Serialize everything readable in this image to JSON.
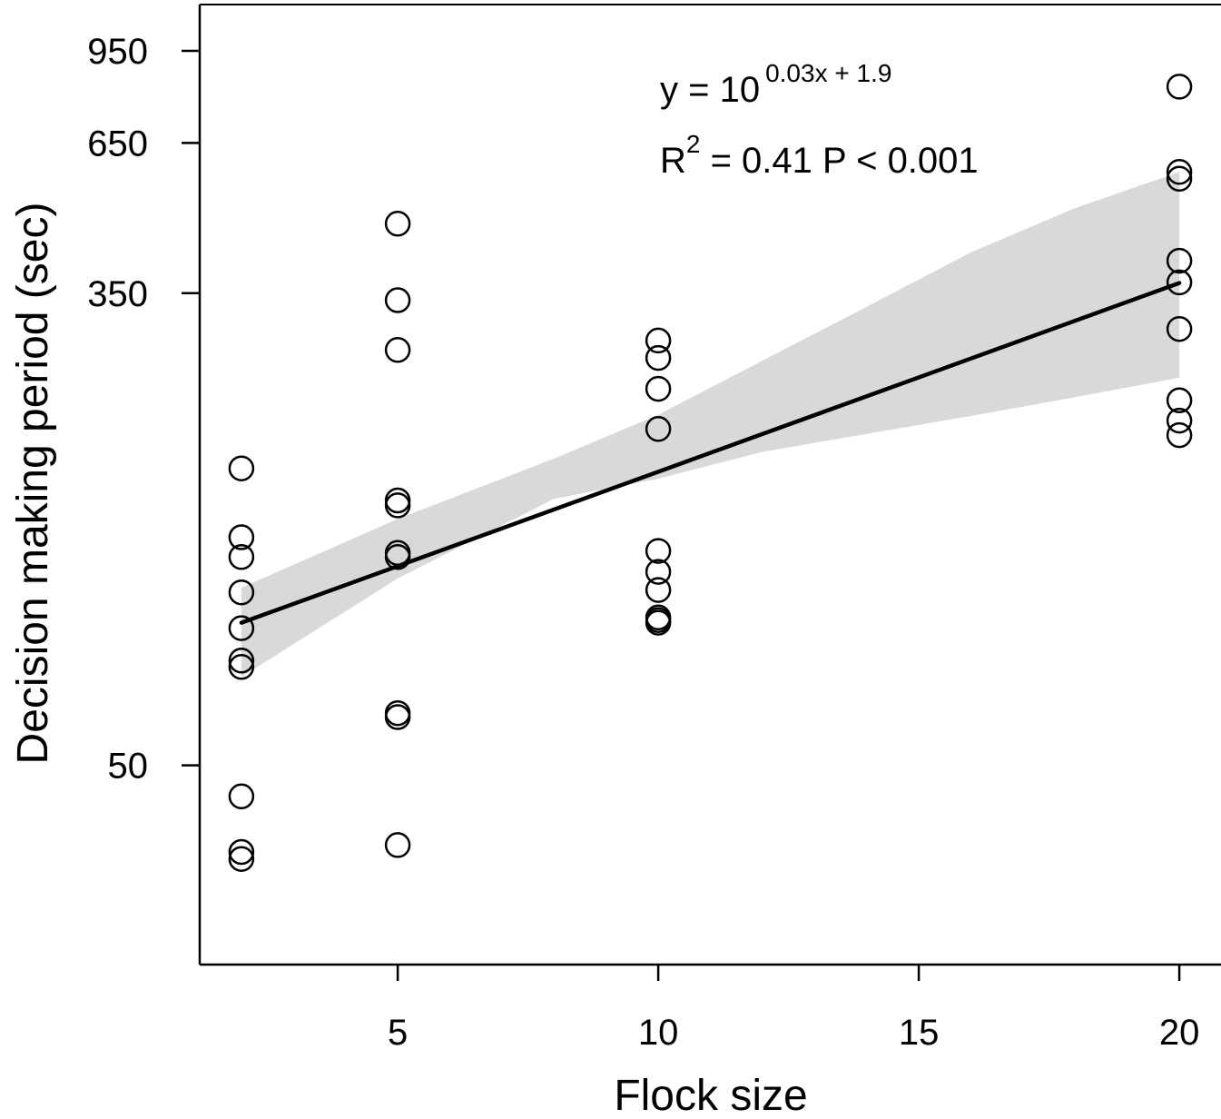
{
  "chart_data": {
    "type": "scatter",
    "xlabel": "Flock size",
    "ylabel": "Decision making period (sec)",
    "y_scale": "log10",
    "xlim": [
      1.2,
      20.8
    ],
    "ylim": [
      22,
      1150
    ],
    "x_ticks": [
      5,
      10,
      15,
      20
    ],
    "x_tick_labels": [
      "5",
      "10",
      "15",
      "20"
    ],
    "y_ticks": [
      50,
      350,
      650,
      950
    ],
    "y_tick_labels": [
      "50",
      "350",
      "650",
      "950"
    ],
    "points": [
      {
        "x": 2,
        "y": 170
      },
      {
        "x": 2,
        "y": 128
      },
      {
        "x": 2,
        "y": 118
      },
      {
        "x": 2,
        "y": 102
      },
      {
        "x": 2,
        "y": 88
      },
      {
        "x": 2,
        "y": 77
      },
      {
        "x": 2,
        "y": 75
      },
      {
        "x": 2,
        "y": 44
      },
      {
        "x": 2,
        "y": 35
      },
      {
        "x": 2,
        "y": 34
      },
      {
        "x": 5,
        "y": 466
      },
      {
        "x": 5,
        "y": 340
      },
      {
        "x": 5,
        "y": 277
      },
      {
        "x": 5,
        "y": 149
      },
      {
        "x": 5,
        "y": 146
      },
      {
        "x": 5,
        "y": 120
      },
      {
        "x": 5,
        "y": 118
      },
      {
        "x": 5,
        "y": 61
      },
      {
        "x": 5,
        "y": 62
      },
      {
        "x": 5,
        "y": 36
      },
      {
        "x": 10,
        "y": 288
      },
      {
        "x": 10,
        "y": 268
      },
      {
        "x": 10,
        "y": 236
      },
      {
        "x": 10,
        "y": 200
      },
      {
        "x": 10,
        "y": 121
      },
      {
        "x": 10,
        "y": 111
      },
      {
        "x": 10,
        "y": 103
      },
      {
        "x": 10,
        "y": 92
      },
      {
        "x": 10,
        "y": 91
      },
      {
        "x": 10,
        "y": 90
      },
      {
        "x": 20,
        "y": 820
      },
      {
        "x": 20,
        "y": 577
      },
      {
        "x": 20,
        "y": 561
      },
      {
        "x": 20,
        "y": 400
      },
      {
        "x": 20,
        "y": 366
      },
      {
        "x": 20,
        "y": 302
      },
      {
        "x": 20,
        "y": 225
      },
      {
        "x": 20,
        "y": 207
      },
      {
        "x": 20,
        "y": 195
      }
    ],
    "fit_line": {
      "x": [
        2,
        20
      ],
      "y": [
        90,
        365
      ]
    },
    "confidence_band": {
      "x": [
        2,
        5,
        8,
        10,
        12,
        14,
        16,
        18,
        20
      ],
      "upper": [
        104,
        138,
        177,
        212,
        265,
        331,
        414,
        497,
        577
      ],
      "lower": [
        72,
        108,
        150,
        163,
        182,
        196,
        211,
        228,
        247
      ]
    },
    "equation_lead": "y = 10",
    "equation_exponent": "0.03x + 1.9",
    "stats_r": "R",
    "stats_r_sup": "2",
    "stats_rest": " = 0.41   P < 0.001",
    "colors": {
      "band": "#d9d9d9",
      "line": "#000000",
      "marker_edge": "#000000",
      "marker_fill": "#ffffff"
    }
  }
}
